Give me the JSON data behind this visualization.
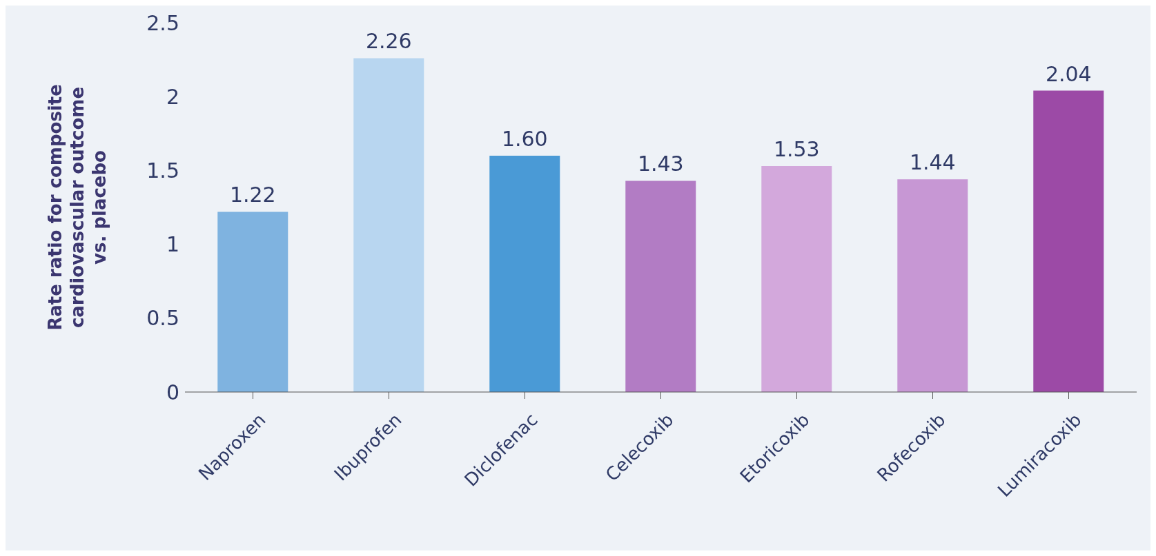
{
  "chart_data": {
    "type": "bar",
    "ylabel": "Rate ratio for composite cardiovascular outcome vs. placebo",
    "categories": [
      "Naproxen",
      "Ibuprofen",
      "Diclofenac",
      "Celecoxib",
      "Etoricoxib",
      "Rofecoxib",
      "Lumiracoxib"
    ],
    "values": [
      1.22,
      2.26,
      1.6,
      1.43,
      1.53,
      1.44,
      2.04
    ],
    "value_labels": [
      "1.22",
      "2.26",
      "1.60",
      "1.43",
      "1.53",
      "1.44",
      "2.04"
    ],
    "colors": [
      "#7fb3e0",
      "#b8d6f0",
      "#4a9ad6",
      "#b27cc4",
      "#d3a8dc",
      "#c797d4",
      "#9c4aa6"
    ],
    "ylim": [
      0,
      2.5
    ],
    "yticks": [
      0,
      0.5,
      1,
      1.5,
      2,
      2.5
    ],
    "grid": false
  }
}
